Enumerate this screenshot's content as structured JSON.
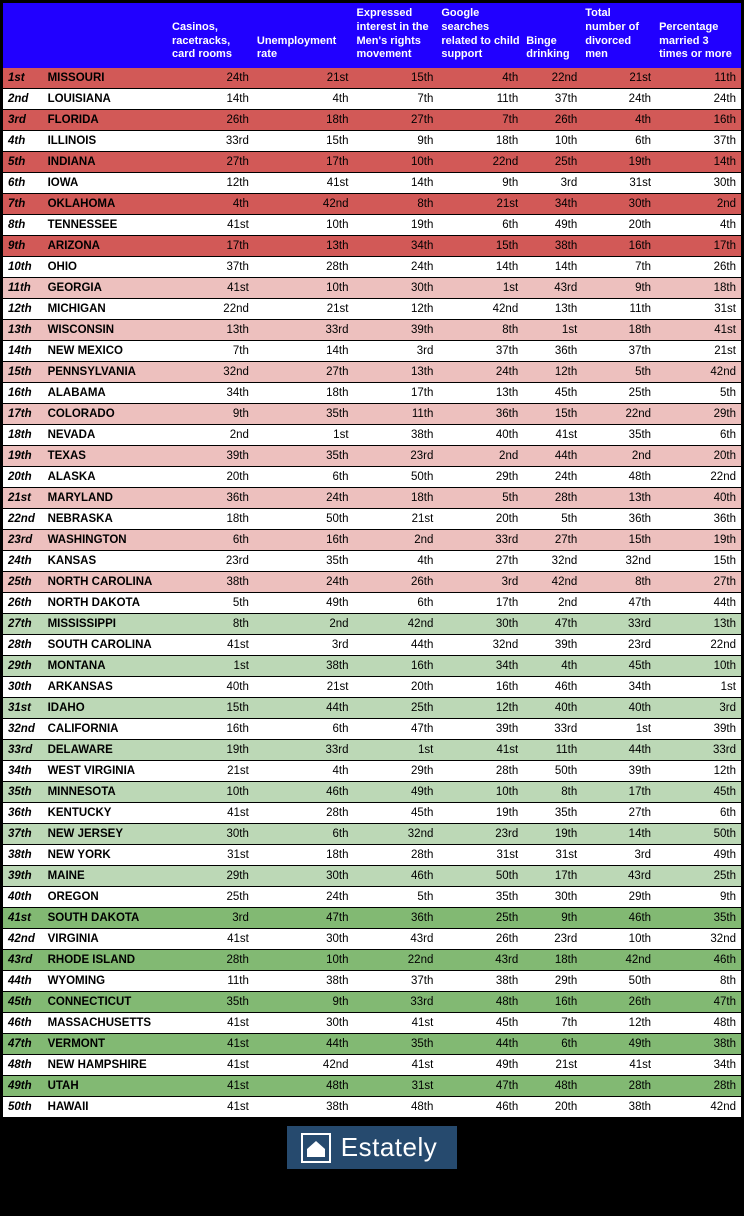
{
  "columns": {
    "rank": "",
    "state": "",
    "casinos": "Casinos, racetracks, card rooms",
    "unemployment": "Unemployment rate",
    "mensrights": "Expressed interest in the Men's rights movement",
    "childsupport": "Google searches related to child support",
    "binge": "Binge drinking",
    "divorced": "Total number of divorced men",
    "married3": "Percentage married 3 times or more"
  },
  "col_widths": {
    "rank": "5.5%",
    "state": "17%",
    "casinos": "11.5%",
    "unemployment": "13.5%",
    "mensrights": "11.5%",
    "childsupport": "11.5%",
    "binge": "8%",
    "divorced": "10%",
    "married3": "11.5%"
  },
  "tiers": {
    "red_dark": {
      "bg": "#d25957",
      "rows": [
        1,
        3,
        5,
        7,
        9
      ]
    },
    "red_light": {
      "bg": "#edc0be",
      "rows": [
        11,
        13,
        15,
        17,
        19,
        21,
        23,
        25
      ]
    },
    "green_light": {
      "bg": "#bcd8b6",
      "rows": [
        27,
        29,
        31,
        33,
        35,
        37,
        39
      ]
    },
    "green_dark": {
      "bg": "#82b973",
      "rows": [
        41,
        43,
        45,
        47,
        49
      ]
    },
    "white": {
      "bg": "#ffffff",
      "rows": [
        2,
        4,
        6,
        8,
        10,
        12,
        14,
        16,
        18,
        20,
        22,
        24,
        26,
        28,
        30,
        32,
        34,
        36,
        38,
        40,
        42,
        44,
        46,
        48,
        50
      ]
    }
  },
  "rows": [
    {
      "rank": "1st",
      "state": "MISSOURI",
      "casinos": "24th",
      "unemployment": "21st",
      "mensrights": "15th",
      "childsupport": "4th",
      "binge": "22nd",
      "divorced": "21st",
      "married3": "11th"
    },
    {
      "rank": "2nd",
      "state": "LOUISIANA",
      "casinos": "14th",
      "unemployment": "4th",
      "mensrights": "7th",
      "childsupport": "11th",
      "binge": "37th",
      "divorced": "24th",
      "married3": "24th"
    },
    {
      "rank": "3rd",
      "state": "FLORIDA",
      "casinos": "26th",
      "unemployment": "18th",
      "mensrights": "27th",
      "childsupport": "7th",
      "binge": "26th",
      "divorced": "4th",
      "married3": "16th"
    },
    {
      "rank": "4th",
      "state": "ILLINOIS",
      "casinos": "33rd",
      "unemployment": "15th",
      "mensrights": "9th",
      "childsupport": "18th",
      "binge": "10th",
      "divorced": "6th",
      "married3": "37th"
    },
    {
      "rank": "5th",
      "state": "INDIANA",
      "casinos": "27th",
      "unemployment": "17th",
      "mensrights": "10th",
      "childsupport": "22nd",
      "binge": "25th",
      "divorced": "19th",
      "married3": "14th"
    },
    {
      "rank": "6th",
      "state": "IOWA",
      "casinos": "12th",
      "unemployment": "41st",
      "mensrights": "14th",
      "childsupport": "9th",
      "binge": "3rd",
      "divorced": "31st",
      "married3": "30th"
    },
    {
      "rank": "7th",
      "state": "OKLAHOMA",
      "casinos": "4th",
      "unemployment": "42nd",
      "mensrights": "8th",
      "childsupport": "21st",
      "binge": "34th",
      "divorced": "30th",
      "married3": "2nd"
    },
    {
      "rank": "8th",
      "state": "TENNESSEE",
      "casinos": "41st",
      "unemployment": "10th",
      "mensrights": "19th",
      "childsupport": "6th",
      "binge": "49th",
      "divorced": "20th",
      "married3": "4th"
    },
    {
      "rank": "9th",
      "state": "ARIZONA",
      "casinos": "17th",
      "unemployment": "13th",
      "mensrights": "34th",
      "childsupport": "15th",
      "binge": "38th",
      "divorced": "16th",
      "married3": "17th"
    },
    {
      "rank": "10th",
      "state": "OHIO",
      "casinos": "37th",
      "unemployment": "28th",
      "mensrights": "24th",
      "childsupport": "14th",
      "binge": "14th",
      "divorced": "7th",
      "married3": "26th"
    },
    {
      "rank": "11th",
      "state": "GEORGIA",
      "casinos": "41st",
      "unemployment": "10th",
      "mensrights": "30th",
      "childsupport": "1st",
      "binge": "43rd",
      "divorced": "9th",
      "married3": "18th"
    },
    {
      "rank": "12th",
      "state": "MICHIGAN",
      "casinos": "22nd",
      "unemployment": "21st",
      "mensrights": "12th",
      "childsupport": "42nd",
      "binge": "13th",
      "divorced": "11th",
      "married3": "31st"
    },
    {
      "rank": "13th",
      "state": "WISCONSIN",
      "casinos": "13th",
      "unemployment": "33rd",
      "mensrights": "39th",
      "childsupport": "8th",
      "binge": "1st",
      "divorced": "18th",
      "married3": "41st"
    },
    {
      "rank": "14th",
      "state": "NEW MEXICO",
      "casinos": "7th",
      "unemployment": "14th",
      "mensrights": "3rd",
      "childsupport": "37th",
      "binge": "36th",
      "divorced": "37th",
      "married3": "21st"
    },
    {
      "rank": "15th",
      "state": "PENNSYLVANIA",
      "casinos": "32nd",
      "unemployment": "27th",
      "mensrights": "13th",
      "childsupport": "24th",
      "binge": "12th",
      "divorced": "5th",
      "married3": "42nd"
    },
    {
      "rank": "16th",
      "state": "ALABAMA",
      "casinos": "34th",
      "unemployment": "18th",
      "mensrights": "17th",
      "childsupport": "13th",
      "binge": "45th",
      "divorced": "25th",
      "married3": "5th"
    },
    {
      "rank": "17th",
      "state": "COLORADO",
      "casinos": "9th",
      "unemployment": "35th",
      "mensrights": "11th",
      "childsupport": "36th",
      "binge": "15th",
      "divorced": "22nd",
      "married3": "29th"
    },
    {
      "rank": "18th",
      "state": "NEVADA",
      "casinos": "2nd",
      "unemployment": "1st",
      "mensrights": "38th",
      "childsupport": "40th",
      "binge": "41st",
      "divorced": "35th",
      "married3": "6th"
    },
    {
      "rank": "19th",
      "state": "TEXAS",
      "casinos": "39th",
      "unemployment": "35th",
      "mensrights": "23rd",
      "childsupport": "2nd",
      "binge": "44th",
      "divorced": "2nd",
      "married3": "20th"
    },
    {
      "rank": "20th",
      "state": "ALASKA",
      "casinos": "20th",
      "unemployment": "6th",
      "mensrights": "50th",
      "childsupport": "29th",
      "binge": "24th",
      "divorced": "48th",
      "married3": "22nd"
    },
    {
      "rank": "21st",
      "state": "MARYLAND",
      "casinos": "36th",
      "unemployment": "24th",
      "mensrights": "18th",
      "childsupport": "5th",
      "binge": "28th",
      "divorced": "13th",
      "married3": "40th"
    },
    {
      "rank": "22nd",
      "state": "NEBRASKA",
      "casinos": "18th",
      "unemployment": "50th",
      "mensrights": "21st",
      "childsupport": "20th",
      "binge": "5th",
      "divorced": "36th",
      "married3": "36th"
    },
    {
      "rank": "23rd",
      "state": "WASHINGTON",
      "casinos": "6th",
      "unemployment": "16th",
      "mensrights": "2nd",
      "childsupport": "33rd",
      "binge": "27th",
      "divorced": "15th",
      "married3": "19th"
    },
    {
      "rank": "24th",
      "state": "KANSAS",
      "casinos": "23rd",
      "unemployment": "35th",
      "mensrights": "4th",
      "childsupport": "27th",
      "binge": "32nd",
      "divorced": "32nd",
      "married3": "15th"
    },
    {
      "rank": "25th",
      "state": "NORTH CAROLINA",
      "casinos": "38th",
      "unemployment": "24th",
      "mensrights": "26th",
      "childsupport": "3rd",
      "binge": "42nd",
      "divorced": "8th",
      "married3": "27th"
    },
    {
      "rank": "26th",
      "state": "NORTH DAKOTA",
      "casinos": "5th",
      "unemployment": "49th",
      "mensrights": "6th",
      "childsupport": "17th",
      "binge": "2nd",
      "divorced": "47th",
      "married3": "44th"
    },
    {
      "rank": "27th",
      "state": "MISSISSIPPI",
      "casinos": "8th",
      "unemployment": "2nd",
      "mensrights": "42nd",
      "childsupport": "30th",
      "binge": "47th",
      "divorced": "33rd",
      "married3": "13th"
    },
    {
      "rank": "28th",
      "state": "SOUTH CAROLINA",
      "casinos": "41st",
      "unemployment": "3rd",
      "mensrights": "44th",
      "childsupport": "32nd",
      "binge": "39th",
      "divorced": "23rd",
      "married3": "22nd"
    },
    {
      "rank": "29th",
      "state": "MONTANA",
      "casinos": "1st",
      "unemployment": "38th",
      "mensrights": "16th",
      "childsupport": "34th",
      "binge": "4th",
      "divorced": "45th",
      "married3": "10th"
    },
    {
      "rank": "30th",
      "state": "ARKANSAS",
      "casinos": "40th",
      "unemployment": "21st",
      "mensrights": "20th",
      "childsupport": "16th",
      "binge": "46th",
      "divorced": "34th",
      "married3": "1st"
    },
    {
      "rank": "31st",
      "state": "IDAHO",
      "casinos": "15th",
      "unemployment": "44th",
      "mensrights": "25th",
      "childsupport": "12th",
      "binge": "40th",
      "divorced": "40th",
      "married3": "3rd"
    },
    {
      "rank": "32nd",
      "state": "CALIFORNIA",
      "casinos": "16th",
      "unemployment": "6th",
      "mensrights": "47th",
      "childsupport": "39th",
      "binge": "33rd",
      "divorced": "1st",
      "married3": "39th"
    },
    {
      "rank": "33rd",
      "state": "DELAWARE",
      "casinos": "19th",
      "unemployment": "33rd",
      "mensrights": "1st",
      "childsupport": "41st",
      "binge": "11th",
      "divorced": "44th",
      "married3": "33rd"
    },
    {
      "rank": "34th",
      "state": "WEST VIRGINIA",
      "casinos": "21st",
      "unemployment": "4th",
      "mensrights": "29th",
      "childsupport": "28th",
      "binge": "50th",
      "divorced": "39th",
      "married3": "12th"
    },
    {
      "rank": "35th",
      "state": "MINNESOTA",
      "casinos": "10th",
      "unemployment": "46th",
      "mensrights": "49th",
      "childsupport": "10th",
      "binge": "8th",
      "divorced": "17th",
      "married3": "45th"
    },
    {
      "rank": "36th",
      "state": "KENTUCKY",
      "casinos": "41st",
      "unemployment": "28th",
      "mensrights": "45th",
      "childsupport": "19th",
      "binge": "35th",
      "divorced": "27th",
      "married3": "6th"
    },
    {
      "rank": "37th",
      "state": "NEW JERSEY",
      "casinos": "30th",
      "unemployment": "6th",
      "mensrights": "32nd",
      "childsupport": "23rd",
      "binge": "19th",
      "divorced": "14th",
      "married3": "50th"
    },
    {
      "rank": "38th",
      "state": "NEW YORK",
      "casinos": "31st",
      "unemployment": "18th",
      "mensrights": "28th",
      "childsupport": "31st",
      "binge": "31st",
      "divorced": "3rd",
      "married3": "49th"
    },
    {
      "rank": "39th",
      "state": "MAINE",
      "casinos": "29th",
      "unemployment": "30th",
      "mensrights": "46th",
      "childsupport": "50th",
      "binge": "17th",
      "divorced": "43rd",
      "married3": "25th"
    },
    {
      "rank": "40th",
      "state": "OREGON",
      "casinos": "25th",
      "unemployment": "24th",
      "mensrights": "5th",
      "childsupport": "35th",
      "binge": "30th",
      "divorced": "29th",
      "married3": "9th"
    },
    {
      "rank": "41st",
      "state": "SOUTH DAKOTA",
      "casinos": "3rd",
      "unemployment": "47th",
      "mensrights": "36th",
      "childsupport": "25th",
      "binge": "9th",
      "divorced": "46th",
      "married3": "35th"
    },
    {
      "rank": "42nd",
      "state": "VIRGINIA",
      "casinos": "41st",
      "unemployment": "30th",
      "mensrights": "43rd",
      "childsupport": "26th",
      "binge": "23rd",
      "divorced": "10th",
      "married3": "32nd"
    },
    {
      "rank": "43rd",
      "state": "RHODE ISLAND",
      "casinos": "28th",
      "unemployment": "10th",
      "mensrights": "22nd",
      "childsupport": "43rd",
      "binge": "18th",
      "divorced": "42nd",
      "married3": "46th"
    },
    {
      "rank": "44th",
      "state": "WYOMING",
      "casinos": "11th",
      "unemployment": "38th",
      "mensrights": "37th",
      "childsupport": "38th",
      "binge": "29th",
      "divorced": "50th",
      "married3": "8th"
    },
    {
      "rank": "45th",
      "state": "CONNECTICUT",
      "casinos": "35th",
      "unemployment": "9th",
      "mensrights": "33rd",
      "childsupport": "48th",
      "binge": "16th",
      "divorced": "26th",
      "married3": "47th"
    },
    {
      "rank": "46th",
      "state": "MASSACHUSETTS",
      "casinos": "41st",
      "unemployment": "30th",
      "mensrights": "41st",
      "childsupport": "45th",
      "binge": "7th",
      "divorced": "12th",
      "married3": "48th"
    },
    {
      "rank": "47th",
      "state": "VERMONT",
      "casinos": "41st",
      "unemployment": "44th",
      "mensrights": "35th",
      "childsupport": "44th",
      "binge": "6th",
      "divorced": "49th",
      "married3": "38th"
    },
    {
      "rank": "48th",
      "state": "NEW HAMPSHIRE",
      "casinos": "41st",
      "unemployment": "42nd",
      "mensrights": "41st",
      "childsupport": "49th",
      "binge": "21st",
      "divorced": "41st",
      "married3": "34th"
    },
    {
      "rank": "49th",
      "state": "UTAH",
      "casinos": "41st",
      "unemployment": "48th",
      "mensrights": "31st",
      "childsupport": "47th",
      "binge": "48th",
      "divorced": "28th",
      "married3": "28th"
    },
    {
      "rank": "50th",
      "state": "HAWAII",
      "casinos": "41st",
      "unemployment": "38th",
      "mensrights": "48th",
      "childsupport": "46th",
      "binge": "20th",
      "divorced": "38th",
      "married3": "42nd"
    }
  ],
  "logo_text": "Estately"
}
